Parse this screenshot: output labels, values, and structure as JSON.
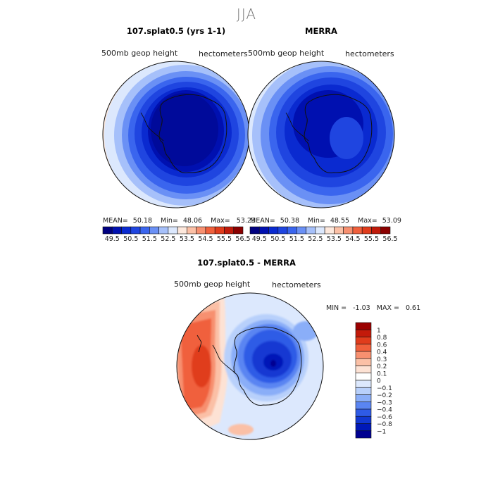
{
  "figure": {
    "season": "JJA"
  },
  "panels": [
    {
      "title": "107.splat0.5 (yrs 1-1)",
      "left_label": "500mb geop height",
      "right_label": "hectometers",
      "stats": {
        "mean_label": "MEAN=",
        "mean": "50.18",
        "min_label": "Min=",
        "min": "48.06",
        "max_label": "Max=",
        "max": "53.23"
      }
    },
    {
      "title": "MERRA",
      "left_label": "500mb geop height",
      "right_label": "hectometers",
      "stats": {
        "mean_label": "MEAN=",
        "mean": "50.38",
        "min_label": "Min=",
        "min": "48.55",
        "max_label": "Max=",
        "max": "53.09"
      }
    },
    {
      "title": "107.splat0.5 - MERRA",
      "left_label": "500mb geop height",
      "right_label": "hectometers",
      "stats": {
        "min_label": "MIN =",
        "min": "-1.03",
        "max_label": "MAX =",
        "max": "0.61"
      }
    }
  ],
  "colorbar_abs": {
    "ticks": [
      "49.5",
      "50.5",
      "51.5",
      "52.5",
      "53.5",
      "54.5",
      "55.5",
      "56.5"
    ],
    "colors": [
      "#000080",
      "#0010b0",
      "#0a2ad0",
      "#1f45e0",
      "#3a65ee",
      "#6a90f5",
      "#a6c0fa",
      "#dce8fd",
      "#fde8dc",
      "#fbc0a6",
      "#f79070",
      "#f0603c",
      "#e03c1c",
      "#c01a0a",
      "#8a0000"
    ]
  },
  "colorbar_diff": {
    "ticks": [
      "1",
      "0.8",
      "0.6",
      "0.4",
      "0.3",
      "0.2",
      "0.1",
      "0",
      "−0.1",
      "−0.2",
      "−0.3",
      "−0.4",
      "−0.6",
      "−0.8",
      "−1"
    ],
    "colors": [
      "#9b0000",
      "#c31a0a",
      "#e03c1c",
      "#f0603c",
      "#f79070",
      "#fbc0a6",
      "#fde2d4",
      "#ffffff",
      "#dce8fd",
      "#b8d0fb",
      "#8aaef8",
      "#5a85f2",
      "#2f5be6",
      "#1238d2",
      "#0018b8",
      "#000090"
    ]
  },
  "chart_data": [
    {
      "type": "heatmap",
      "title": "107.splat0.5 (yrs 1-1)",
      "variable": "500mb geop height",
      "units": "hectometers",
      "mean": 50.18,
      "min": 48.06,
      "max": 53.23,
      "levels": [
        49.5,
        50,
        50.5,
        51,
        51.5,
        52,
        52.5,
        53,
        53.5,
        54,
        54.5,
        55,
        55.5,
        56,
        56.5
      ]
    },
    {
      "type": "heatmap",
      "title": "MERRA",
      "variable": "500mb geop height",
      "units": "hectometers",
      "mean": 50.38,
      "min": 48.55,
      "max": 53.09,
      "levels": [
        49.5,
        50,
        50.5,
        51,
        51.5,
        52,
        52.5,
        53,
        53.5,
        54,
        54.5,
        55,
        55.5,
        56,
        56.5
      ]
    },
    {
      "type": "heatmap",
      "title": "107.splat0.5 - MERRA",
      "variable": "500mb geop height",
      "units": "hectometers",
      "min": -1.03,
      "max": 0.61,
      "levels": [
        -1,
        -0.8,
        -0.6,
        -0.4,
        -0.3,
        -0.2,
        -0.1,
        0,
        0.1,
        0.2,
        0.3,
        0.4,
        0.6,
        0.8,
        1
      ]
    }
  ]
}
